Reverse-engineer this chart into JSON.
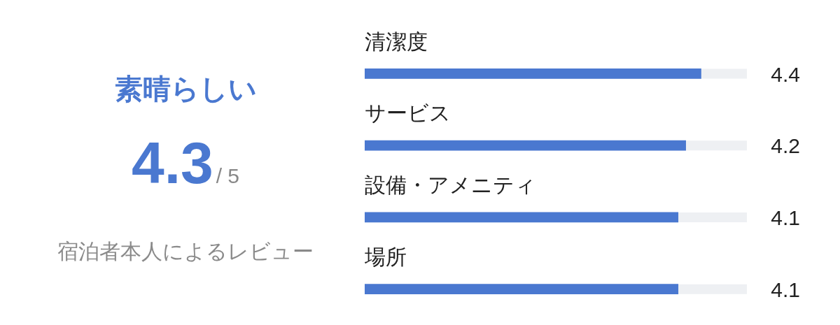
{
  "chart_data": [
    {
      "type": "other",
      "title": "素晴らしい",
      "annotations": [
        "4.3",
        "/ 5",
        "宿泊者本人によるレビュー"
      ]
    },
    {
      "type": "bar",
      "orientation": "horizontal",
      "categories": [
        "清潔度",
        "サービス",
        "設備・アメニティ",
        "場所"
      ],
      "values": [
        4.4,
        4.2,
        4.1,
        4.1
      ],
      "color": "#4a78d0",
      "xlim": [
        0,
        5
      ],
      "data_labels": true,
      "tick_labels": "y"
    }
  ]
}
